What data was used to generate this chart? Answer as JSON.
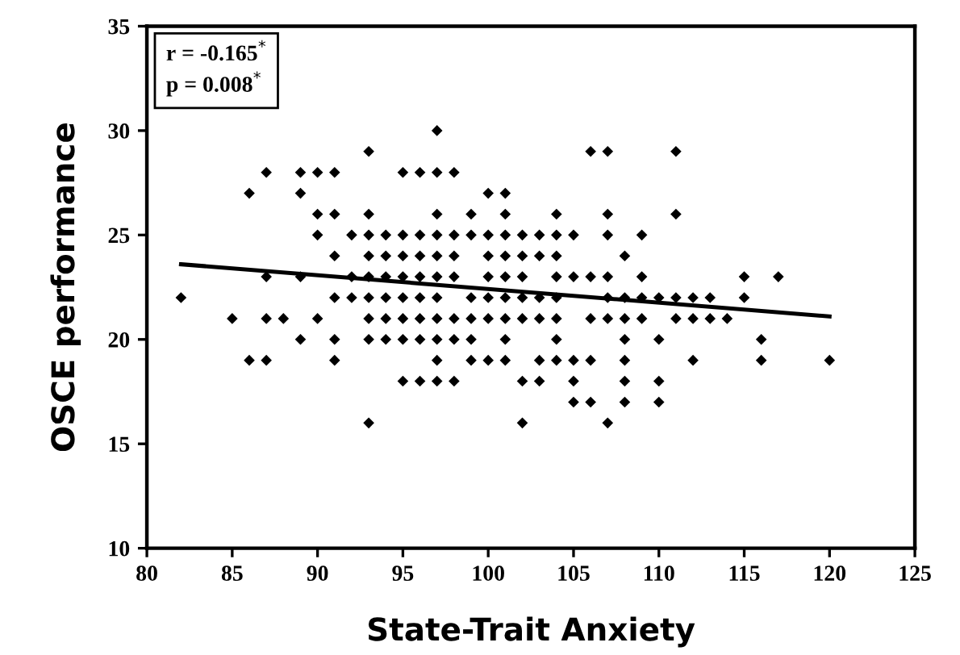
{
  "chart_data": {
    "type": "scatter",
    "xlabel": "State-Trait Anxiety",
    "ylabel": "OSCE performance",
    "annotations": [
      "r = -0.165$^{*}$",
      "p = 0.008$^{*}$"
    ],
    "xlim": [
      80,
      125
    ],
    "xticks": [
      80,
      85,
      90,
      95,
      100,
      105,
      110,
      115,
      120,
      125
    ],
    "ylim": [
      10,
      35
    ],
    "yticks": [
      10,
      15,
      20,
      25,
      30,
      35
    ],
    "grid": false,
    "series": [
      {
        "marker": "diamond",
        "color": "#000000",
        "x": [
          97,
          93,
          106,
          107,
          111,
          87,
          89,
          90,
          91,
          95,
          96,
          97,
          98,
          86,
          89,
          100,
          101,
          90,
          91,
          93,
          97,
          99,
          101,
          104,
          107,
          111,
          90,
          92,
          93,
          94,
          95,
          96,
          97,
          98,
          99,
          100,
          101,
          102,
          103,
          104,
          105,
          107,
          109,
          91,
          93,
          94,
          95,
          96,
          97,
          98,
          100,
          101,
          102,
          103,
          104,
          108,
          87,
          89,
          92,
          93,
          94,
          95,
          96,
          97,
          98,
          100,
          101,
          102,
          104,
          105,
          106,
          107,
          109,
          115,
          117,
          82,
          91,
          92,
          93,
          94,
          95,
          96,
          97,
          99,
          100,
          101,
          102,
          103,
          104,
          107,
          108,
          109,
          110,
          111,
          112,
          113,
          115,
          85,
          87,
          88,
          90,
          93,
          94,
          95,
          96,
          97,
          98,
          99,
          100,
          101,
          102,
          103,
          104,
          106,
          107,
          108,
          109,
          111,
          112,
          113,
          114,
          89,
          91,
          93,
          94,
          95,
          96,
          97,
          98,
          99,
          101,
          104,
          108,
          110,
          116,
          86,
          87,
          91,
          97,
          99,
          100,
          101,
          103,
          104,
          105,
          106,
          108,
          112,
          116,
          120,
          95,
          96,
          97,
          98,
          102,
          103,
          105,
          108,
          110,
          105,
          106,
          108,
          110,
          93,
          102,
          107
        ],
        "values": [
          30,
          29,
          29,
          29,
          29,
          28,
          28,
          28,
          28,
          28,
          28,
          28,
          28,
          27,
          27,
          27,
          27,
          26,
          26,
          26,
          26,
          26,
          26,
          26,
          26,
          26,
          25,
          25,
          25,
          25,
          25,
          25,
          25,
          25,
          25,
          25,
          25,
          25,
          25,
          25,
          25,
          25,
          25,
          24,
          24,
          24,
          24,
          24,
          24,
          24,
          24,
          24,
          24,
          24,
          24,
          24,
          23,
          23,
          23,
          23,
          23,
          23,
          23,
          23,
          23,
          23,
          23,
          23,
          23,
          23,
          23,
          23,
          23,
          23,
          23,
          22,
          22,
          22,
          22,
          22,
          22,
          22,
          22,
          22,
          22,
          22,
          22,
          22,
          22,
          22,
          22,
          22,
          22,
          22,
          22,
          22,
          22,
          21,
          21,
          21,
          21,
          21,
          21,
          21,
          21,
          21,
          21,
          21,
          21,
          21,
          21,
          21,
          21,
          21,
          21,
          21,
          21,
          21,
          21,
          21,
          21,
          20,
          20,
          20,
          20,
          20,
          20,
          20,
          20,
          20,
          20,
          20,
          20,
          20,
          20,
          19,
          19,
          19,
          19,
          19,
          19,
          19,
          19,
          19,
          19,
          19,
          19,
          19,
          19,
          19,
          18,
          18,
          18,
          18,
          18,
          18,
          18,
          18,
          18,
          17,
          17,
          17,
          17,
          16,
          16,
          16
        ]
      },
      {
        "type": "line",
        "color": "#000000",
        "x": [
          82,
          120
        ],
        "values": [
          23.6,
          21.1
        ]
      }
    ]
  }
}
